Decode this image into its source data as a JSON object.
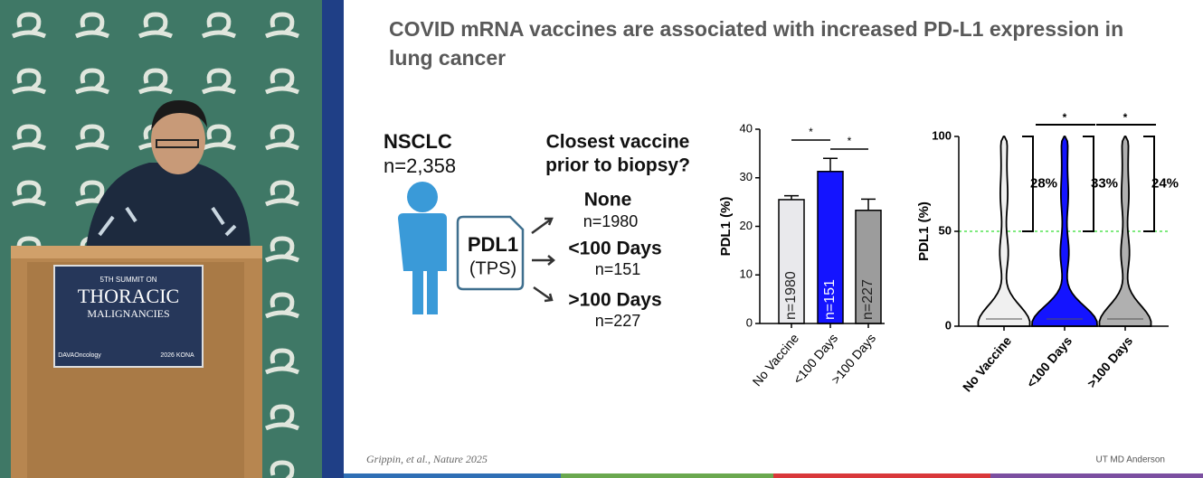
{
  "podium": {
    "line1": "5TH SUMMIT ON",
    "line2": "THORACIC",
    "line3": "MALIGNANCIES",
    "sponsor": "DAVAOncology",
    "badge": "2026 KONA"
  },
  "slide": {
    "title_line1": "COVID mRNA vaccines are associated with increased PD-L1 expression in",
    "title_line2": "lung cancer",
    "cohort": "NSCLC",
    "cohort_n": "n=2,358",
    "marker": "PDL1",
    "marker_sub": "(TPS)",
    "question_line1": "Closest vaccine",
    "question_line2": "prior to biopsy?",
    "groups": [
      {
        "label": "None",
        "n": "n=1980"
      },
      {
        "label": "<100 Days",
        "n": "n=151"
      },
      {
        "label": ">100 Days",
        "n": "n=227"
      }
    ],
    "citation": "Grippin, et al., Nature 2025",
    "affiliation": "UT MD Anderson"
  },
  "chart_data": [
    {
      "type": "bar",
      "y_label": "PDL1 (%)",
      "categories": [
        "No Vaccine",
        "<100 Days",
        ">100 Days"
      ],
      "values": [
        25.5,
        31.3,
        23.3
      ],
      "errors": [
        0.8,
        2.7,
        2.3
      ],
      "colors": [
        "#e9e9ec",
        "#1414ff",
        "#9c9c9c"
      ],
      "bar_labels": [
        "n=1980",
        "n=151",
        "n=227"
      ],
      "ylim": [
        0,
        40
      ],
      "yticks": [
        0,
        10,
        20,
        30,
        40
      ],
      "significance": [
        {
          "pair": [
            0,
            1
          ],
          "label": "*"
        },
        {
          "pair": [
            1,
            2
          ],
          "label": "*"
        }
      ]
    },
    {
      "type": "violin",
      "y_label": "PDL1 (%)",
      "categories": [
        "No Vaccine",
        "<100 Days",
        ">100 Days"
      ],
      "colors": [
        "#f0f0f0",
        "#1414ff",
        "#b0b0b0"
      ],
      "ylim": [
        0,
        100
      ],
      "yticks": [
        0,
        50,
        100
      ],
      "threshold": 50,
      "bracket_labels": [
        "28%",
        "33%",
        "24%"
      ],
      "significance": [
        {
          "over": 1,
          "label": "*"
        },
        {
          "over": 2,
          "label": "*"
        }
      ]
    }
  ]
}
